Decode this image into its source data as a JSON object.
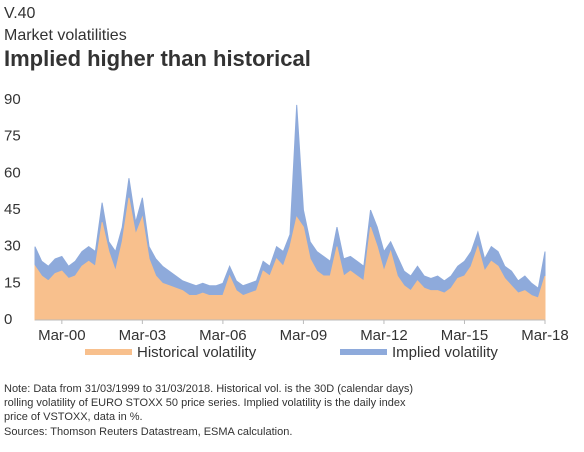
{
  "header": {
    "code": "V.40",
    "subtitle": "Market volatilities",
    "title": "Implied higher than historical"
  },
  "chart_data": {
    "type": "area",
    "x": [
      1999.25,
      1999.5,
      1999.75,
      2000,
      2000.25,
      2000.5,
      2000.75,
      2001,
      2001.25,
      2001.5,
      2001.75,
      2002,
      2002.25,
      2002.5,
      2002.75,
      2003,
      2003.25,
      2003.5,
      2003.75,
      2004,
      2004.25,
      2004.5,
      2004.75,
      2005,
      2005.25,
      2005.5,
      2005.75,
      2006,
      2006.25,
      2006.5,
      2006.75,
      2007,
      2007.25,
      2007.5,
      2007.75,
      2008,
      2008.25,
      2008.5,
      2008.75,
      2009,
      2009.25,
      2009.5,
      2009.75,
      2010,
      2010.25,
      2010.5,
      2010.75,
      2011,
      2011.25,
      2011.5,
      2011.75,
      2012,
      2012.25,
      2012.5,
      2012.75,
      2013,
      2013.25,
      2013.5,
      2013.75,
      2014,
      2014.25,
      2014.5,
      2014.75,
      2015,
      2015.25,
      2015.5,
      2015.75,
      2016,
      2016.25,
      2016.5,
      2016.75,
      2017,
      2017.25,
      2017.5,
      2017.75,
      2018,
      2018.25
    ],
    "series": [
      {
        "name": "Implied volatility",
        "color": "#8eaadb",
        "values": [
          30,
          24,
          22,
          25,
          26,
          22,
          24,
          28,
          30,
          28,
          48,
          32,
          28,
          38,
          58,
          40,
          50,
          30,
          25,
          22,
          20,
          18,
          16,
          15,
          14,
          15,
          14,
          14,
          15,
          22,
          16,
          14,
          15,
          16,
          24,
          22,
          30,
          28,
          35,
          88,
          45,
          32,
          28,
          26,
          24,
          38,
          25,
          26,
          24,
          22,
          45,
          38,
          28,
          32,
          26,
          20,
          18,
          22,
          18,
          17,
          18,
          16,
          18,
          22,
          24,
          28,
          36,
          25,
          30,
          28,
          22,
          20,
          16,
          18,
          15,
          13,
          28
        ]
      },
      {
        "name": "Historical volatility",
        "color": "#f8c08d",
        "values": [
          22,
          18,
          16,
          19,
          20,
          17,
          18,
          22,
          24,
          22,
          40,
          28,
          20,
          32,
          50,
          35,
          42,
          25,
          18,
          15,
          14,
          13,
          12,
          10,
          10,
          11,
          10,
          10,
          10,
          18,
          12,
          10,
          11,
          12,
          20,
          18,
          25,
          22,
          30,
          42,
          38,
          25,
          20,
          18,
          18,
          30,
          18,
          20,
          18,
          16,
          38,
          30,
          20,
          28,
          18,
          14,
          12,
          16,
          13,
          12,
          12,
          11,
          13,
          17,
          18,
          22,
          30,
          20,
          24,
          22,
          17,
          14,
          11,
          12,
          10,
          9,
          18
        ]
      }
    ],
    "xlim": [
      1999.25,
      2018.25
    ],
    "xticks": [
      {
        "value": 2000.25,
        "label": "Mar-00"
      },
      {
        "value": 2003.25,
        "label": "Mar-03"
      },
      {
        "value": 2006.25,
        "label": "Mar-06"
      },
      {
        "value": 2009.25,
        "label": "Mar-09"
      },
      {
        "value": 2012.25,
        "label": "Mar-12"
      },
      {
        "value": 2015.25,
        "label": "Mar-15"
      },
      {
        "value": 2018.25,
        "label": "Mar-18"
      }
    ],
    "ylim": [
      0,
      90
    ],
    "yticks": [
      0,
      15,
      30,
      45,
      60,
      75,
      90
    ],
    "legend": "bottom"
  },
  "notes": [
    "Note: Data from 31/03/1999 to 31/03/2018. Historical vol. is the 30D (calendar days)",
    "rolling volatility of EURO STOXX 50 price series. Implied volatility is the daily index",
    "price of VSTOXX, data in %.",
    "Sources: Thomson Reuters Datastream, ESMA calculation."
  ]
}
